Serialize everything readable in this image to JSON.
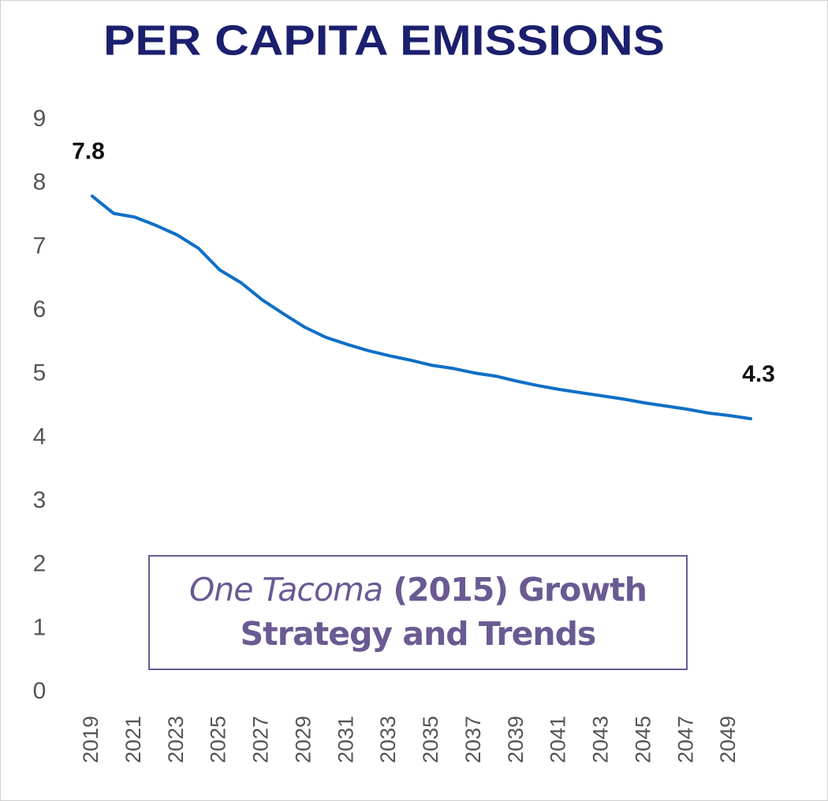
{
  "chart_data": {
    "type": "line",
    "title": "PER CAPITA EMISSIONS",
    "categories": [
      "2019",
      null,
      "2021",
      null,
      "2023",
      null,
      "2025",
      null,
      "2027",
      null,
      "2029",
      null,
      "2031",
      null,
      "2033",
      null,
      "2035",
      null,
      "2037",
      null,
      "2039",
      null,
      "2041",
      null,
      "2043",
      null,
      "2045",
      null,
      "2047",
      null,
      "2049",
      null
    ],
    "series": [
      {
        "name": "Per capita emissions",
        "color": "#0f6fc6",
        "values": [
          7.8,
          7.53,
          7.47,
          7.34,
          7.19,
          6.98,
          6.64,
          6.44,
          6.17,
          5.95,
          5.74,
          5.58,
          5.47,
          5.37,
          5.29,
          5.22,
          5.14,
          5.09,
          5.02,
          4.97,
          4.89,
          4.82,
          4.76,
          4.71,
          4.66,
          4.61,
          4.55,
          4.5,
          4.45,
          4.39,
          4.35,
          4.3
        ]
      }
    ],
    "ylim": [
      0,
      9
    ],
    "yticks": [
      0,
      1,
      2,
      3,
      4,
      5,
      6,
      7,
      8,
      9
    ],
    "grid": false,
    "annotation": [
      "One Tacoma",
      "(2015) Growth",
      "Strategy and Trends"
    ]
  }
}
